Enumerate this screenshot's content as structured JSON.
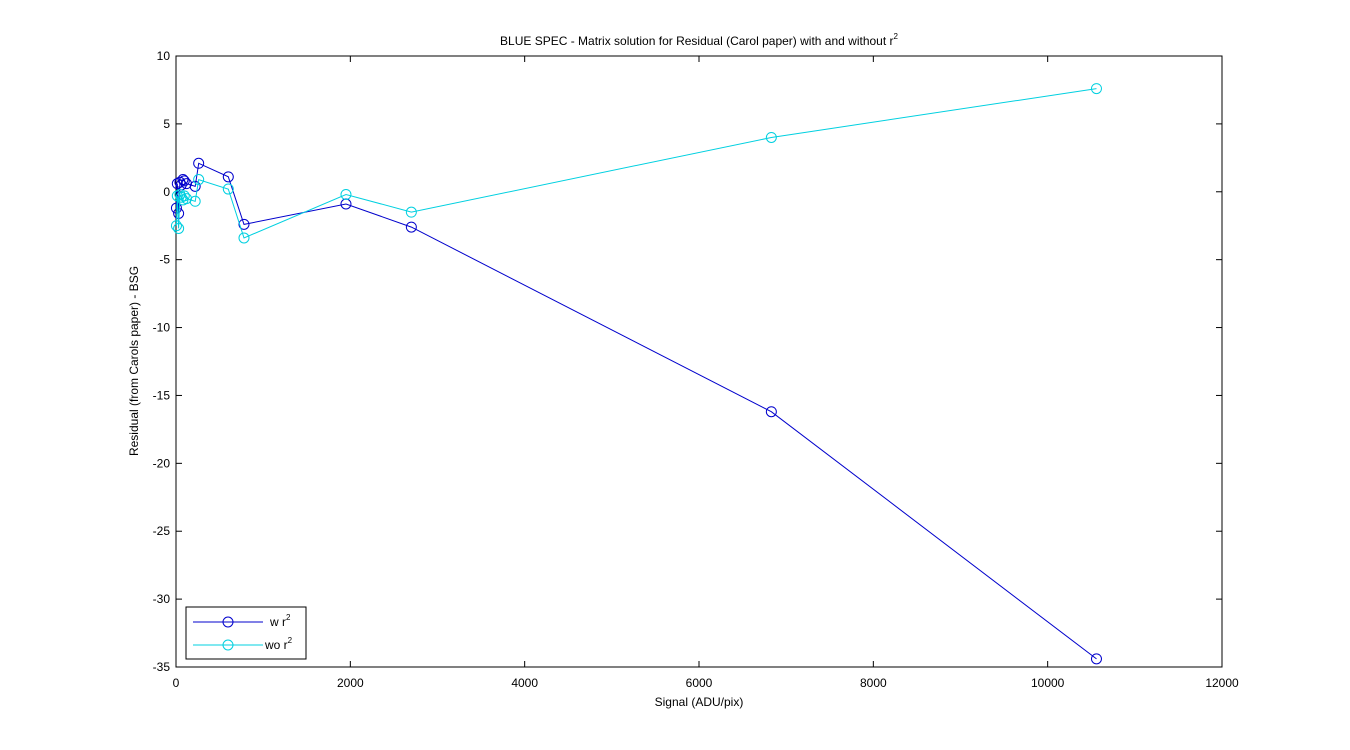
{
  "chart_data": {
    "type": "line",
    "title": "BLUE SPEC - Matrix solution for Residual (Carol paper) with and without r",
    "title_superscript": "2",
    "xlabel": "Signal (ADU/pix)",
    "ylabel": "Residual (from Carols paper) - BSG",
    "xlim": [
      0,
      12000
    ],
    "ylim": [
      -35,
      10
    ],
    "xticks": [
      0,
      2000,
      4000,
      6000,
      8000,
      10000,
      12000
    ],
    "yticks": [
      -35,
      -30,
      -25,
      -20,
      -15,
      -10,
      -5,
      0,
      5,
      10
    ],
    "legend_position": "bottom-left",
    "marker": "circle",
    "series": [
      {
        "name": "w r",
        "name_superscript": "2",
        "color": "#0000cc",
        "x": [
          5,
          15,
          30,
          45,
          60,
          80,
          95,
          120,
          220,
          260,
          600,
          780,
          1950,
          2700,
          6830,
          10560
        ],
        "y": [
          -1.2,
          0.6,
          -1.6,
          0.7,
          0.5,
          0.9,
          0.8,
          0.6,
          0.4,
          2.1,
          1.1,
          -2.4,
          -0.9,
          -2.6,
          -16.2,
          -34.4
        ]
      },
      {
        "name": "wo r",
        "name_superscript": "2",
        "color": "#00d0e0",
        "x": [
          5,
          15,
          30,
          45,
          60,
          80,
          95,
          120,
          220,
          260,
          600,
          780,
          1950,
          2700,
          6830,
          10560
        ],
        "y": [
          -2.5,
          -0.3,
          -2.7,
          -0.2,
          -0.4,
          -0.6,
          -0.3,
          -0.5,
          -0.7,
          0.9,
          0.2,
          -3.4,
          -0.2,
          -1.5,
          4.0,
          7.6
        ]
      }
    ]
  }
}
